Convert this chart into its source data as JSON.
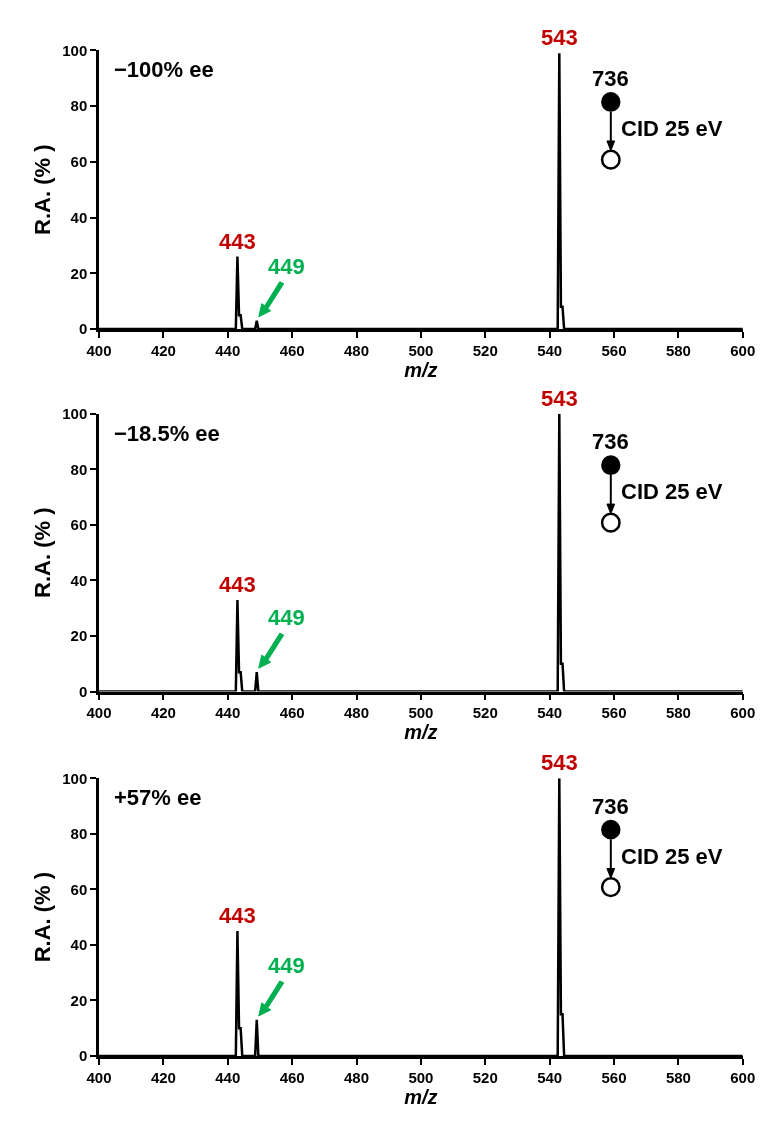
{
  "chart_data": [
    {
      "type": "line",
      "xlabel": "m/z",
      "ylabel": "R.A. (% )",
      "xlim": [
        400,
        600
      ],
      "ylim": [
        0,
        100
      ],
      "xticks": [
        400,
        420,
        440,
        460,
        480,
        500,
        520,
        540,
        560,
        580,
        600
      ],
      "yticks": [
        0,
        20,
        40,
        60,
        80,
        100
      ],
      "marker": "none",
      "line_style": "solid",
      "series": [
        {
          "color": "#000000",
          "x": [
            400,
            442.5,
            443,
            443.5,
            444,
            444.5,
            448.5,
            449,
            449.5,
            542.5,
            543,
            543.5,
            544,
            544.5,
            600
          ],
          "values": [
            0,
            0,
            26,
            5,
            5,
            0,
            0,
            3,
            0,
            0,
            99,
            8,
            8,
            0,
            0
          ]
        }
      ],
      "annotations": [
        "−100% ee",
        "736",
        "CID 25 eV",
        {
          "text": "443",
          "x": 443,
          "y": 26
        },
        {
          "text": "449",
          "x": 449,
          "y": 3
        },
        {
          "text": "543",
          "x": 543,
          "y": 99
        }
      ]
    },
    {
      "type": "line",
      "xlabel": "m/z",
      "ylabel": "R.A. (% )",
      "xlim": [
        400,
        600
      ],
      "ylim": [
        0,
        100
      ],
      "xticks": [
        400,
        420,
        440,
        460,
        480,
        500,
        520,
        540,
        560,
        580,
        600
      ],
      "yticks": [
        0,
        20,
        40,
        60,
        80,
        100
      ],
      "marker": "none",
      "line_style": "solid",
      "series": [
        {
          "color": "#000000",
          "x": [
            400,
            442.5,
            443,
            443.5,
            444,
            444.5,
            448.5,
            449,
            449.5,
            542.5,
            543,
            543.5,
            544,
            544.5,
            600
          ],
          "values": [
            0,
            0,
            33,
            7,
            7,
            0,
            0,
            7,
            0,
            0,
            100,
            10,
            10,
            0,
            0
          ]
        }
      ],
      "annotations": [
        "−18.5% ee",
        "736",
        "CID 25 eV",
        {
          "text": "443",
          "x": 443,
          "y": 33
        },
        {
          "text": "449",
          "x": 449,
          "y": 7
        },
        {
          "text": "543",
          "x": 543,
          "y": 100
        }
      ]
    },
    {
      "type": "line",
      "xlabel": "m/z",
      "ylabel": "R.A. (% )",
      "xlim": [
        400,
        600
      ],
      "ylim": [
        0,
        100
      ],
      "xticks": [
        400,
        420,
        440,
        460,
        480,
        500,
        520,
        540,
        560,
        580,
        600
      ],
      "yticks": [
        0,
        20,
        40,
        60,
        80,
        100
      ],
      "marker": "none",
      "line_style": "solid",
      "series": [
        {
          "color": "#000000",
          "x": [
            400,
            442.5,
            443,
            443.5,
            444,
            444.5,
            448.5,
            449,
            449.5,
            542.5,
            543,
            543.5,
            544,
            544.5,
            600
          ],
          "values": [
            0,
            0,
            45,
            10,
            10,
            0,
            0,
            13,
            0,
            0,
            100,
            15,
            15,
            0,
            0
          ]
        }
      ],
      "annotations": [
        "+57% ee",
        "736",
        "CID 25 eV",
        {
          "text": "443",
          "x": 443,
          "y": 45
        },
        {
          "text": "449",
          "x": 449,
          "y": 13
        },
        {
          "text": "543",
          "x": 543,
          "y": 100
        }
      ]
    }
  ]
}
